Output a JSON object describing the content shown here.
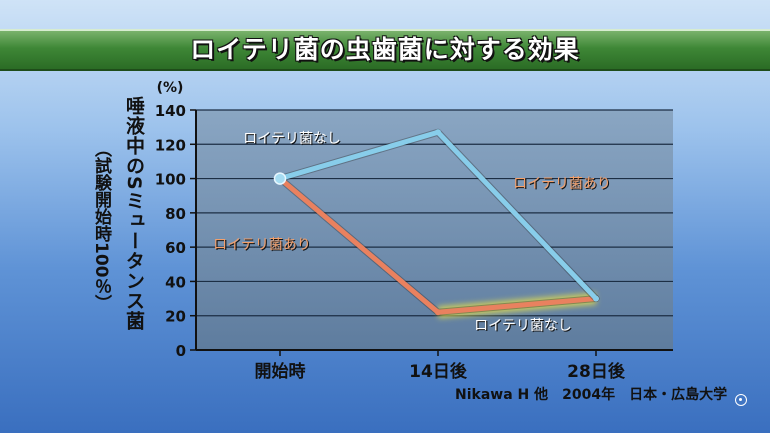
{
  "header": {
    "title": "ロイテリ菌の虫歯菌に対する効果"
  },
  "chart_data": {
    "type": "line",
    "categories": [
      "開始時",
      "14日後",
      "28日後"
    ],
    "series": [
      {
        "name": "ロイテリ菌なし",
        "values": [
          100,
          127,
          30
        ],
        "color": "#88cdea"
      },
      {
        "name": "ロイテリ菌あり",
        "values": [
          100,
          22,
          30
        ],
        "color": "#e9815f"
      }
    ],
    "ylim": [
      0,
      140
    ],
    "yticks": [
      0,
      20,
      40,
      60,
      80,
      100,
      120,
      140
    ],
    "y_unit": "(%)",
    "ylabel": "唾液中のSミュータンス菌",
    "ylabel_sub": "（試験開始時100％）",
    "grid": true,
    "annotations": [
      {
        "text": "ロイテリ菌なし",
        "series": 0,
        "near": "upper-left",
        "color": "#ffffff"
      },
      {
        "text": "ロイテリ菌あり",
        "series": 1,
        "near": "upper-right",
        "color": "#f3a06c"
      },
      {
        "text": "ロイテリ菌あり",
        "series": 1,
        "near": "left",
        "color": "#f3a06c"
      },
      {
        "text": "ロイテリ菌なし",
        "series": 0,
        "near": "lower-middle",
        "color": "#ffffff"
      }
    ]
  },
  "footer": {
    "citation": "Nikawa H 他　2004年　日本・広島大学"
  },
  "icons": {
    "corner": "circle-dot-icon"
  }
}
